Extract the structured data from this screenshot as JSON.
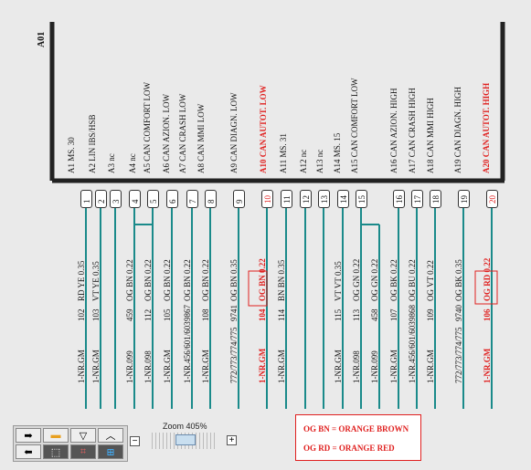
{
  "connector": "A01",
  "functions": [
    {
      "pin": "A1",
      "label": "MS. 30",
      "red": false
    },
    {
      "pin": "A2",
      "label": "LIN IBS/HSB",
      "red": false
    },
    {
      "pin": "A3",
      "label": "nc",
      "red": false
    },
    {
      "pin": "A4",
      "label": "nc",
      "red": false
    },
    {
      "pin": "A5",
      "label": "CAN COMFORT LOW",
      "red": false
    },
    {
      "pin": "A6",
      "label": "CAN AZION. LOW",
      "red": false
    },
    {
      "pin": "A7",
      "label": "CAN CRASH LOW",
      "red": false
    },
    {
      "pin": "A8",
      "label": "CAN MMI LOW",
      "red": false
    },
    {
      "pin": "A9",
      "label": "CAN DIAGN. LOW",
      "red": false
    },
    {
      "pin": "A10",
      "label": "CAN AUTOT. LOW",
      "red": true
    },
    {
      "pin": "A11",
      "label": "MS. 31",
      "red": false
    },
    {
      "pin": "A12",
      "label": "nc",
      "red": false
    },
    {
      "pin": "A13",
      "label": "nc",
      "red": false
    },
    {
      "pin": "A14",
      "label": "MS. 15",
      "red": false
    },
    {
      "pin": "A15",
      "label": "CAN COMFORT LOW",
      "red": false
    },
    {
      "pin": "A16",
      "label": "CAN AZION. HIGH",
      "red": false
    },
    {
      "pin": "A17",
      "label": "CAN CRASH HIGH",
      "red": false
    },
    {
      "pin": "A18",
      "label": "CAN MMI HIGH",
      "red": false
    },
    {
      "pin": "A19",
      "label": "CAN DIAGN. HIGH",
      "red": false
    },
    {
      "pin": "A20",
      "label": "CAN AUTOT. HIGH",
      "red": true
    }
  ],
  "wires": [
    {
      "num": "1",
      "wire": "RD YE 0.35",
      "code": "102",
      "dest": "1-NR.GM",
      "red": false
    },
    {
      "num": "2",
      "wire": "VT YE 0.35",
      "code": "103",
      "dest": "1-NR.GM",
      "red": false
    },
    {
      "num": "3",
      "wire": "",
      "code": "",
      "dest": "",
      "red": false
    },
    {
      "num": "4",
      "wire": "OG BN 0.22",
      "code": "459",
      "dest": "1-NR.099",
      "red": false
    },
    {
      "num": "5",
      "wire": "OG BN 0.22",
      "code": "112",
      "dest": "1-NR.098",
      "red": false
    },
    {
      "num": "6",
      "wire": "OG BN 0.22",
      "code": "105",
      "dest": "1-NR.GM",
      "red": false
    },
    {
      "num": "7",
      "wire": "OG BN 0.22",
      "code": "9867",
      "dest": "1-NR.456/601/603",
      "red": false
    },
    {
      "num": "8",
      "wire": "OG BN 0.22",
      "code": "108",
      "dest": "1-NR.GM",
      "red": false
    },
    {
      "num": "9",
      "wire": "OG BN 0.35",
      "code": "9741",
      "dest": "772/773/774/775",
      "red": false
    },
    {
      "num": "10",
      "wire": "OG BN 0.22",
      "code": "104",
      "dest": "1-NR.GM",
      "red": true
    },
    {
      "num": "11",
      "wire": "BN BN 0.35",
      "code": "114",
      "dest": "1-NR.GM",
      "red": false
    },
    {
      "num": "12",
      "wire": "",
      "code": "",
      "dest": "",
      "red": false
    },
    {
      "num": "13",
      "wire": "",
      "code": "",
      "dest": "",
      "red": false
    },
    {
      "num": "14",
      "wire": "VT VT 0.35",
      "code": "115",
      "dest": "1-NR.GM",
      "red": false
    },
    {
      "num": "15",
      "wire": "OG GN 0.22",
      "code": "113",
      "dest": "1-NR.098",
      "red": false
    },
    {
      "num": "",
      "wire": "OG GN 0.22",
      "code": "458",
      "dest": "1-NR.099",
      "red": false
    },
    {
      "num": "16",
      "wire": "OG BK 0.22",
      "code": "107",
      "dest": "1-NR.GM",
      "red": false
    },
    {
      "num": "17",
      "wire": "OG BU 0.22",
      "code": "9868",
      "dest": "1-NR.456/601/603",
      "red": false
    },
    {
      "num": "18",
      "wire": "OG VT 0.22",
      "code": "109",
      "dest": "1-NR.GM",
      "red": false
    },
    {
      "num": "19",
      "wire": "OG BK 0.35",
      "code": "9740",
      "dest": "772/773/774/775",
      "red": false
    },
    {
      "num": "20",
      "wire": "OG RD 0.22",
      "code": "106",
      "dest": "1-NR.GM",
      "red": true
    }
  ],
  "zoom_label": "Zoom 405%",
  "zoom_minus": "−",
  "zoom_plus": "+",
  "legend": [
    "OG BN = ORANGE BROWN",
    "OG RD = ORANGE RED"
  ],
  "colors": {
    "wire": "#1a8a8a",
    "highlight": "#e0201f"
  }
}
